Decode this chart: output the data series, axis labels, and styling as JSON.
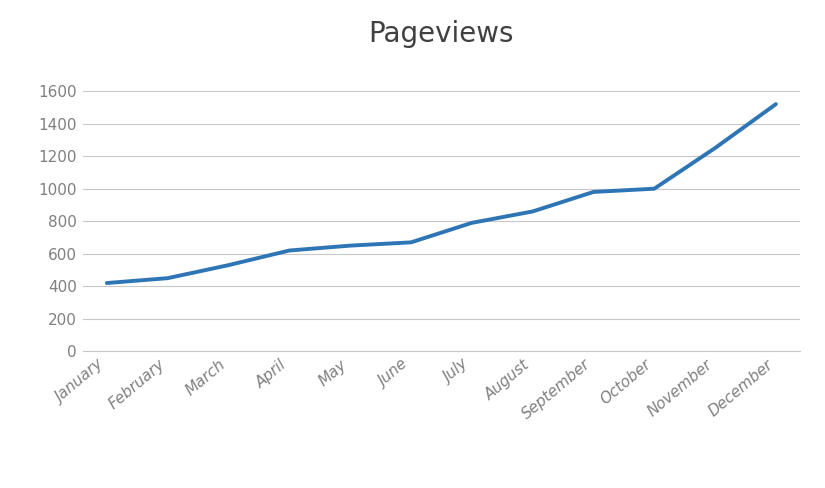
{
  "title": "Pageviews",
  "categories": [
    "January",
    "February",
    "March",
    "April",
    "May",
    "June",
    "July",
    "August",
    "September",
    "October",
    "November",
    "December"
  ],
  "values": [
    420,
    450,
    530,
    620,
    650,
    670,
    790,
    860,
    980,
    1000,
    1250,
    1520
  ],
  "line_color": "#2E75B6",
  "line_width": 2.8,
  "background_color": "#ffffff",
  "grid_color": "#c8c8c8",
  "ylim": [
    0,
    1800
  ],
  "yticks": [
    0,
    200,
    400,
    600,
    800,
    1000,
    1200,
    1400,
    1600
  ],
  "title_fontsize": 20,
  "tick_fontsize": 11,
  "tick_label_color": "#808080",
  "title_color": "#404040"
}
